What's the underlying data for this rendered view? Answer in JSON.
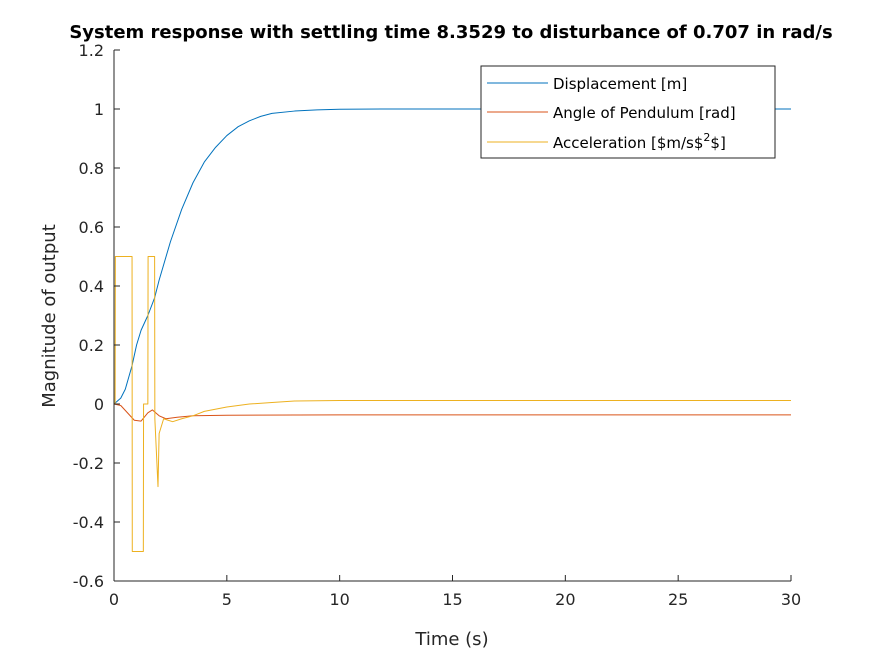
{
  "chart_data": {
    "type": "line",
    "title": "System response with settling time 8.3529 to disturbance of 0.707 in rad/s",
    "xlabel": "Time (s)",
    "ylabel": "Magnitude of output",
    "xlim": [
      0,
      30
    ],
    "ylim": [
      -0.6,
      1.2
    ],
    "x_ticks": [
      0,
      5,
      10,
      15,
      20,
      25,
      30
    ],
    "x_tick_labels": [
      "0",
      "5",
      "10",
      "15",
      "20",
      "25",
      "30"
    ],
    "y_ticks": [
      -0.6,
      -0.4,
      -0.2,
      0,
      0.2,
      0.4,
      0.6,
      0.8,
      1,
      1.2
    ],
    "y_tick_labels": [
      "-0.6",
      "-0.4",
      "-0.2",
      "0",
      "0.2",
      "0.4",
      "0.6",
      "0.8",
      "1",
      "1.2"
    ],
    "grid": false,
    "legend_position": "top-right",
    "legend_labels": [
      "Displacement [m]",
      "Angle of Pendulum [rad]",
      "Acceleration [$m/s$",
      "2",
      "$]"
    ],
    "series": [
      {
        "name": "Displacement [m]",
        "color": "#0072BD",
        "x": [
          0,
          0.3,
          0.5,
          0.8,
          1.0,
          1.2,
          1.5,
          1.8,
          2.0,
          2.5,
          3.0,
          3.5,
          4.0,
          4.5,
          5.0,
          5.5,
          6.0,
          6.5,
          7.0,
          8.0,
          9.0,
          10.0,
          12.0,
          15.0,
          20.0,
          30.0
        ],
        "y": [
          0,
          0.02,
          0.05,
          0.13,
          0.2,
          0.25,
          0.3,
          0.36,
          0.42,
          0.55,
          0.66,
          0.75,
          0.82,
          0.87,
          0.91,
          0.94,
          0.96,
          0.975,
          0.985,
          0.993,
          0.997,
          0.999,
          1.0,
          1.0,
          1.0,
          1.0
        ]
      },
      {
        "name": "Angle of Pendulum [rad]",
        "color": "#D95319",
        "x": [
          0,
          0.3,
          0.6,
          0.9,
          1.2,
          1.5,
          1.7,
          2.0,
          2.3,
          2.8,
          3.5,
          5.0,
          10.0,
          30.0
        ],
        "y": [
          0,
          -0.005,
          -0.03,
          -0.055,
          -0.058,
          -0.03,
          -0.02,
          -0.04,
          -0.05,
          -0.045,
          -0.04,
          -0.038,
          -0.037,
          -0.037
        ]
      },
      {
        "name": "Acceleration [$m/s$2$]",
        "color": "#EDB120",
        "x": [
          0,
          0.05,
          0.06,
          0.8,
          0.81,
          1.3,
          1.31,
          1.5,
          1.51,
          1.8,
          1.81,
          1.95,
          2.0,
          2.2,
          2.4,
          2.6,
          3.0,
          3.5,
          4.0,
          5.0,
          6.0,
          7.0,
          8.0,
          10.0,
          15.0,
          20.0,
          30.0
        ],
        "y": [
          0,
          0,
          0.5,
          0.5,
          -0.5,
          -0.5,
          0,
          0,
          0.5,
          0.5,
          -0.05,
          -0.28,
          -0.1,
          -0.05,
          -0.055,
          -0.06,
          -0.05,
          -0.04,
          -0.025,
          -0.01,
          0.0,
          0.005,
          0.01,
          0.012,
          0.012,
          0.012,
          0.012
        ]
      }
    ]
  }
}
